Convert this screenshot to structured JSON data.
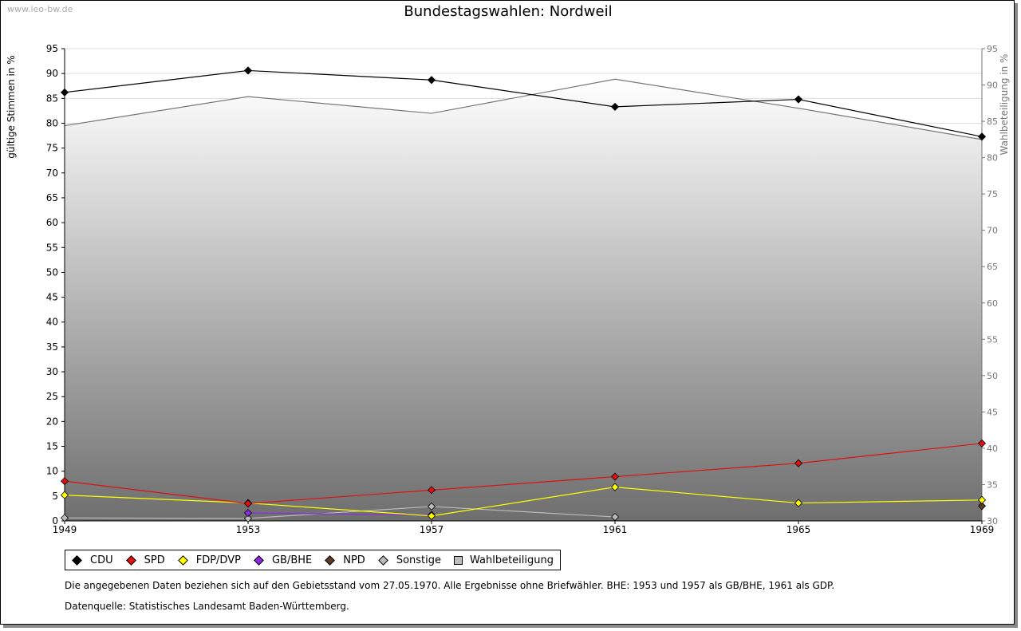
{
  "watermark": "www.leo-bw.de",
  "chart_data": {
    "type": "line",
    "title": "Bundestagswahlen: Nordweil",
    "categories": [
      "1949",
      "1953",
      "1957",
      "1961",
      "1965",
      "1969"
    ],
    "ylabel": "gültige Stimmen in %",
    "y2label": "Wahlbeteiligung in %",
    "ylim": [
      0,
      95
    ],
    "y2lim": [
      30,
      95
    ],
    "yticks": [
      0,
      5,
      10,
      15,
      20,
      25,
      30,
      35,
      40,
      45,
      50,
      55,
      60,
      65,
      70,
      75,
      80,
      85,
      90,
      95
    ],
    "y2ticks": [
      30,
      35,
      40,
      45,
      50,
      55,
      60,
      65,
      70,
      75,
      80,
      85,
      90,
      95
    ],
    "grid": true,
    "legend_position": "bottom-left",
    "series": [
      {
        "name": "CDU",
        "color": "#000000",
        "axis": "left",
        "values": [
          86.2,
          90.6,
          88.7,
          83.3,
          84.8,
          77.3
        ]
      },
      {
        "name": "SPD",
        "color": "#dd1111",
        "axis": "left",
        "values": [
          8.0,
          3.5,
          6.2,
          8.9,
          11.6,
          15.6
        ]
      },
      {
        "name": "FDP/DVP",
        "color": "#ffff00",
        "axis": "left",
        "values": [
          5.2,
          3.6,
          1.0,
          6.8,
          3.6,
          4.2
        ]
      },
      {
        "name": "GB/BHE",
        "color": "#8a2be2",
        "axis": "left",
        "values": [
          null,
          1.6,
          1.2,
          null,
          null,
          null
        ]
      },
      {
        "name": "NPD",
        "color": "#5a3a2a",
        "axis": "left",
        "values": [
          null,
          null,
          null,
          null,
          null,
          3.0
        ]
      },
      {
        "name": "Sonstige",
        "color": "#bbbbbb",
        "axis": "left",
        "values": [
          0.6,
          0.5,
          2.9,
          0.8,
          null,
          null
        ]
      }
    ],
    "turnout": {
      "name": "Wahlbeteiligung",
      "axis": "right",
      "values": [
        84.4,
        88.4,
        86.1,
        90.8,
        86.8,
        82.5
      ]
    }
  },
  "notes": {
    "line1": "Die angegebenen Daten beziehen sich auf den Gebietsstand vom 27.05.1970. Alle Ergebnisse ohne Briefwähler. BHE: 1953 und 1957 als GB/BHE, 1961 als GDP.",
    "line2": "Datenquelle: Statistisches Landesamt Baden-Württemberg."
  },
  "colors": {
    "turnout_line": "#777777",
    "grid": "#dddddd",
    "area_top": "#ffffff",
    "area_bottom": "#6e6e6e"
  }
}
